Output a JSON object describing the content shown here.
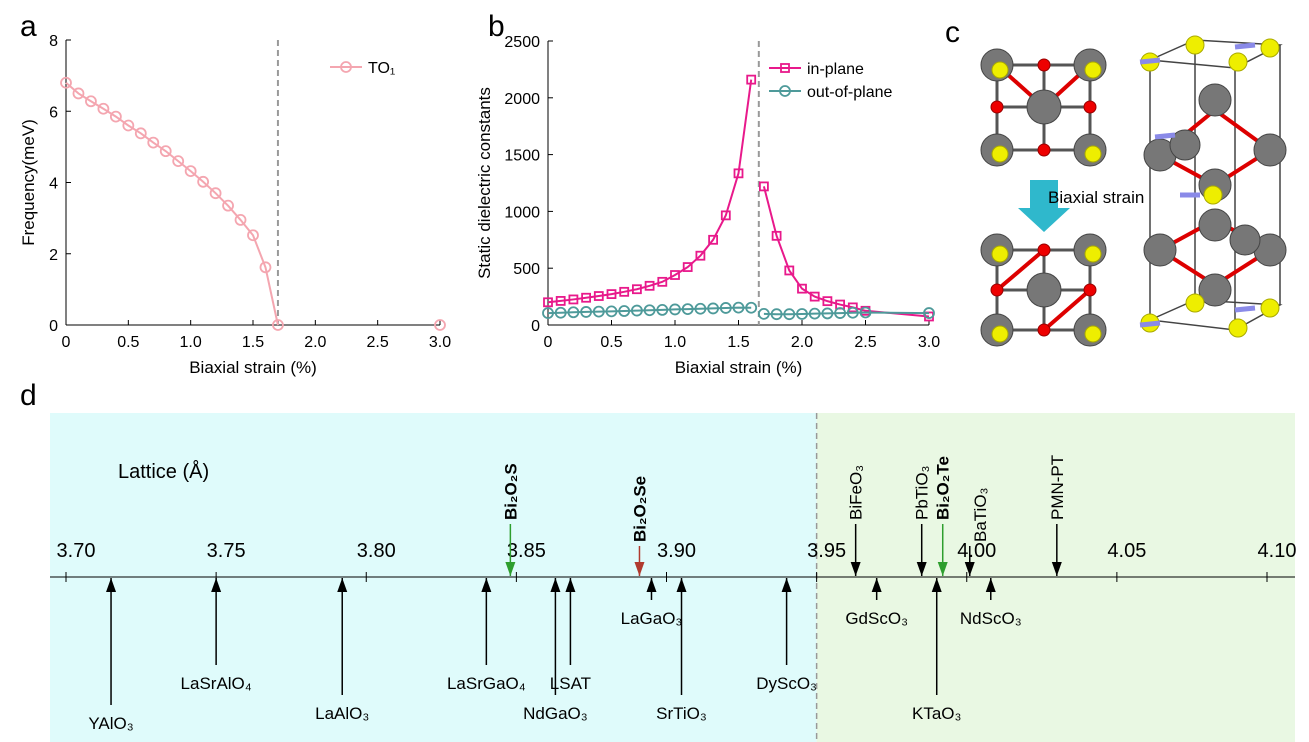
{
  "chart_data": [
    {
      "type": "line",
      "label": "a",
      "xlabel": "Biaxial strain (%)",
      "ylabel": "Frequency(meV)",
      "x": [
        0,
        0.1,
        0.2,
        0.3,
        0.4,
        0.5,
        0.6,
        0.7,
        0.8,
        0.9,
        1.0,
        1.1,
        1.2,
        1.3,
        1.4,
        1.5,
        1.6,
        1.7,
        3.0
      ],
      "xlim": [
        0,
        3
      ],
      "ylim": [
        0,
        8
      ],
      "xticks": [
        0,
        0.5,
        {
          "value": 1,
          "label": "1.0"
        },
        1.5,
        {
          "value": 2,
          "label": "2.0"
        },
        2.5,
        {
          "value": 3,
          "label": "3.0"
        }
      ],
      "yticks": [
        0,
        2,
        4,
        6,
        8
      ],
      "vline": 1.7,
      "legend": "upper right",
      "series": [
        {
          "name": "TO₁",
          "color": "#f4a6b0",
          "marker": "circle",
          "values": [
            6.8,
            6.5,
            6.28,
            6.07,
            5.85,
            5.6,
            5.38,
            5.12,
            4.88,
            4.6,
            4.32,
            4.02,
            3.7,
            3.35,
            2.95,
            2.52,
            1.62,
            0,
            0
          ]
        }
      ]
    },
    {
      "type": "line",
      "label": "b",
      "xlabel": "Biaxial strain (%)",
      "ylabel": "Static dielectric constants",
      "x": [
        0,
        0.1,
        0.2,
        0.3,
        0.4,
        0.5,
        0.6,
        0.7,
        0.8,
        0.9,
        1.0,
        1.1,
        1.2,
        1.3,
        1.4,
        1.5,
        1.6,
        1.7,
        1.8,
        1.9,
        2.0,
        2.1,
        2.2,
        2.3,
        2.4,
        2.5,
        3.0
      ],
      "xlim": [
        0,
        3
      ],
      "ylim": [
        0,
        2500
      ],
      "xticks": [
        0,
        0.5,
        {
          "value": 1,
          "label": "1.0"
        },
        1.5,
        {
          "value": 2,
          "label": "2.0"
        },
        2.5,
        {
          "value": 3,
          "label": "3.0"
        }
      ],
      "yticks": [
        0,
        500,
        1000,
        1500,
        2000,
        2500
      ],
      "vline": 1.66,
      "legend": "upper right",
      "series": [
        {
          "name": "in-plane",
          "color": "#e8198b",
          "marker": "square",
          "values": [
            200,
            212,
            225,
            240,
            255,
            272,
            292,
            315,
            345,
            380,
            440,
            510,
            610,
            750,
            965,
            1335,
            2160,
            1220,
            785,
            480,
            320,
            250,
            210,
            180,
            155,
            125,
            75
          ]
        },
        {
          "name": "out-of-plane",
          "color": "#4e9a9a",
          "marker": "circle",
          "values": [
            105,
            108,
            112,
            115,
            118,
            120,
            123,
            127,
            130,
            133,
            137,
            140,
            143,
            146,
            150,
            153,
            152,
            98,
            95,
            95,
            97,
            100,
            102,
            105,
            108,
            110,
            105
          ]
        }
      ]
    },
    {
      "type": "numberline",
      "label": "d",
      "title": "Lattice (Å)",
      "xlim": [
        3.7,
        4.1
      ],
      "xticks": [
        {
          "value": 3.7,
          "label": "3.70"
        },
        3.75,
        {
          "value": 3.8,
          "label": "3.80"
        },
        3.85,
        {
          "value": 3.9,
          "label": "3.90"
        },
        3.95,
        {
          "value": 4,
          "label": "4.00"
        },
        4.05,
        {
          "value": 4.1,
          "label": "4.10"
        }
      ],
      "divider": 3.95,
      "region_colors": [
        "#dffbfb",
        "#e9f8e3"
      ],
      "above": {
        "labels": [
          "Bi₂O₂S",
          "Bi₂O₂Se",
          "BiFeO₃",
          "PbTiO₃",
          "Bi₂O₂Te",
          "BaTiO₃",
          "PMN-PT"
        ],
        "values": [
          3.848,
          3.891,
          3.963,
          3.985,
          3.992,
          4.001,
          4.03
        ],
        "colors": [
          "#2e9e2e",
          "#b03a2e",
          "#000000",
          "#000000",
          "#2e9e2e",
          "#000000",
          "#000000"
        ]
      },
      "below": {
        "labels": [
          "YAlO₃",
          "LaSrAlO₄",
          "LaAlO₃",
          "LaSrGaO₄",
          "NdGaO₃",
          "LSAT",
          "LaGaO₃",
          "SrTiO₃",
          "DyScO₃",
          "GdScO₃",
          "KTaO₃",
          "NdScO₃"
        ],
        "values": [
          3.715,
          3.75,
          3.792,
          3.84,
          3.863,
          3.868,
          3.895,
          3.905,
          3.94,
          3.97,
          3.99,
          4.008
        ]
      }
    }
  ],
  "structure": {
    "label": "c",
    "annotation": "Biaxial strain"
  }
}
